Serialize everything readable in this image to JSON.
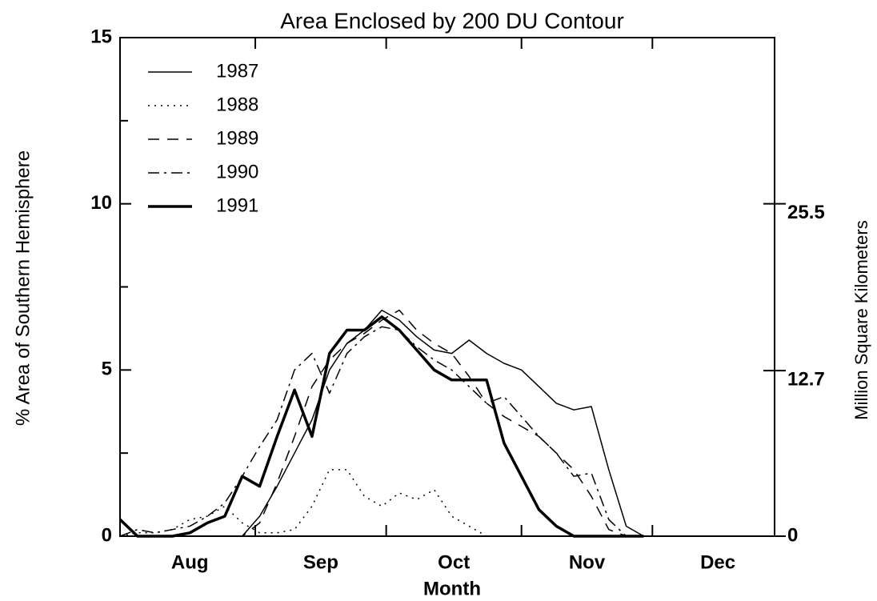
{
  "chart_data": {
    "type": "line",
    "title": "Area Enclosed by 200 DU Contour",
    "x_label": "Month",
    "y_label": "% Area of Southern Hemisphere",
    "y2_label": "Million Square Kilometers",
    "x": [
      0,
      4,
      8,
      12,
      16,
      20,
      24,
      28,
      32,
      36,
      40,
      44,
      48,
      52,
      56,
      60,
      64,
      68,
      72,
      76,
      80,
      84,
      88,
      92,
      96,
      100,
      104,
      108,
      112,
      116,
      120
    ],
    "xlim": [
      0,
      150
    ],
    "xticks": [
      {
        "value": 16,
        "label": "Aug"
      },
      {
        "value": 46,
        "label": "Sep"
      },
      {
        "value": 76.5,
        "label": "Oct"
      },
      {
        "value": 107,
        "label": "Nov"
      },
      {
        "value": 137,
        "label": "Dec"
      }
    ],
    "xminor": [
      31,
      61,
      92,
      122
    ],
    "ylim": [
      0,
      15
    ],
    "yticks": [
      0,
      5,
      10,
      15
    ],
    "yminor": [
      2.5,
      7.5,
      12.5
    ],
    "y2lim": [
      0,
      38.25
    ],
    "y2ticks": [
      0,
      12.7,
      25.5
    ],
    "legend": "upper left",
    "series": [
      {
        "name": "1987",
        "color": "#000000",
        "style": "solid",
        "linewidth": 1.5,
        "values": [
          0,
          0,
          0,
          0,
          0,
          0,
          0,
          0,
          0.6,
          1.5,
          2.5,
          3.5,
          5,
          5.8,
          6.2,
          6.8,
          6.5,
          6.0,
          5.6,
          5.5,
          5.9,
          5.5,
          5.2,
          5.0,
          4.5,
          4.0,
          3.8,
          3.9,
          2.0,
          0.3,
          0
        ]
      },
      {
        "name": "1988",
        "color": "#000000",
        "style": "dotted",
        "linewidth": 1.5,
        "values": [
          0,
          0.1,
          0.1,
          0.2,
          0.5,
          0.6,
          0.9,
          0.4,
          0.1,
          0.1,
          0.2,
          0.9,
          2.0,
          2.0,
          1.2,
          0.9,
          1.3,
          1.1,
          1.4,
          0.6,
          0.3,
          0,
          0,
          0,
          0,
          0,
          0,
          0,
          0,
          0,
          0
        ]
      },
      {
        "name": "1989",
        "color": "#000000",
        "style": "dashed",
        "linewidth": 1.5,
        "values": [
          0,
          0,
          0,
          0,
          0,
          0,
          0,
          0,
          0.4,
          1.6,
          3.0,
          4.5,
          5.3,
          5.8,
          6.1,
          6.5,
          6.8,
          6.2,
          5.8,
          5.5,
          4.8,
          4.0,
          3.6,
          3.3,
          3.0,
          2.5,
          2.0,
          1.2,
          0.2,
          0,
          0
        ]
      },
      {
        "name": "1990",
        "color": "#000000",
        "style": "dashdot",
        "linewidth": 1.5,
        "values": [
          0,
          0.2,
          0.1,
          0.2,
          0.3,
          0.6,
          1.0,
          1.8,
          2.7,
          3.5,
          5.0,
          5.5,
          4.3,
          5.5,
          6.0,
          6.3,
          6.2,
          5.7,
          5.3,
          5.0,
          4.5,
          4.0,
          4.2,
          3.6,
          3.0,
          2.5,
          1.8,
          1.9,
          0.5,
          0,
          0
        ]
      },
      {
        "name": "1991",
        "color": "#000000",
        "style": "solid",
        "linewidth": 3.5,
        "values": [
          0.5,
          0,
          0,
          0,
          0.1,
          0.4,
          0.6,
          1.8,
          1.5,
          3.0,
          4.4,
          3.0,
          5.5,
          6.2,
          6.2,
          6.6,
          6.2,
          5.6,
          5.0,
          4.7,
          4.7,
          4.7,
          2.8,
          1.8,
          0.8,
          0.3,
          0,
          0,
          0,
          0,
          0
        ]
      }
    ]
  }
}
